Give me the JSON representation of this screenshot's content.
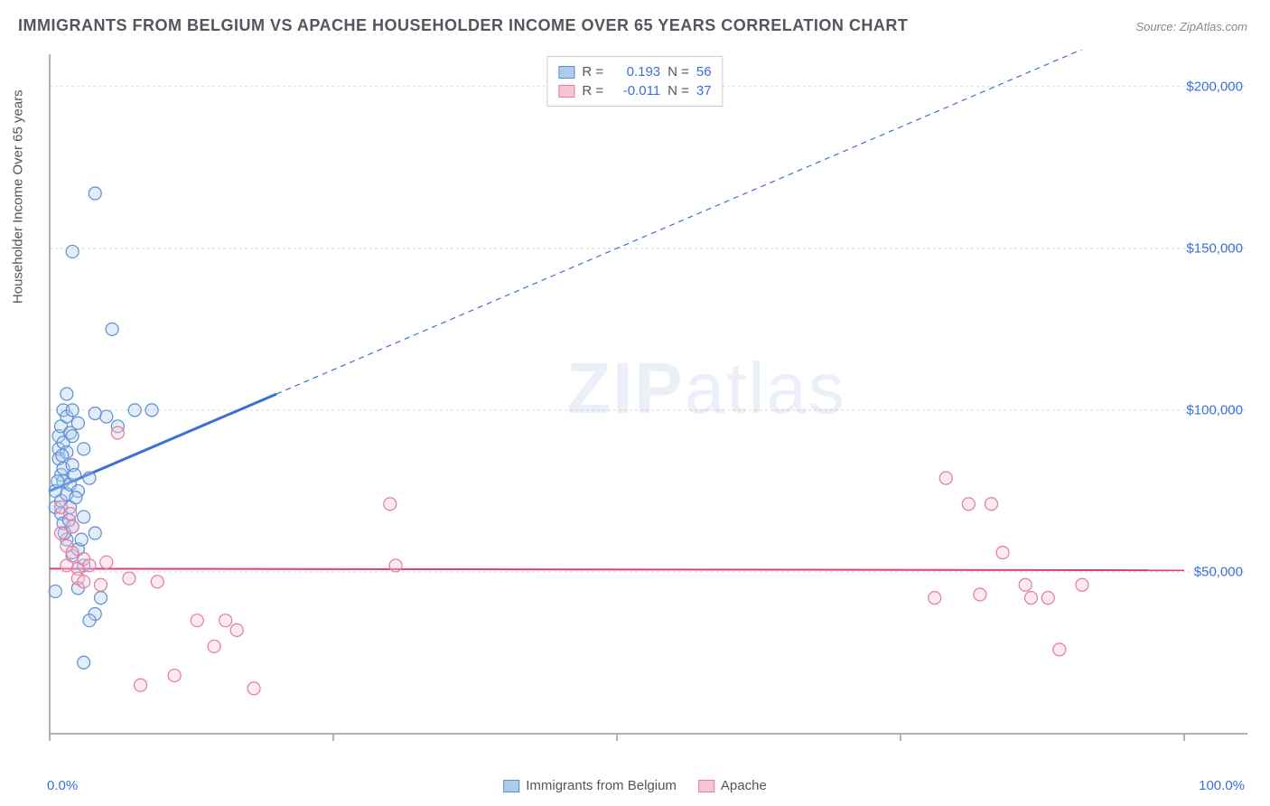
{
  "title": "IMMIGRANTS FROM BELGIUM VS APACHE HOUSEHOLDER INCOME OVER 65 YEARS CORRELATION CHART",
  "source": "Source: ZipAtlas.com",
  "watermark": "ZIPatlas",
  "chart": {
    "type": "scatter",
    "background_color": "#ffffff",
    "grid_color": "#d8d8d8",
    "axis_color": "#999999",
    "y_label": "Householder Income Over 65 years",
    "y_label_fontsize": 15,
    "xlim": [
      0,
      100
    ],
    "ylim": [
      0,
      210000
    ],
    "x_ticks": [
      0,
      25,
      50,
      75,
      100
    ],
    "x_tick_labels_shown": {
      "0": "0.0%",
      "100": "100.0%"
    },
    "y_gridlines": [
      50000,
      100000,
      150000,
      200000
    ],
    "y_tick_labels": {
      "50000": "$50,000",
      "100000": "$100,000",
      "150000": "$150,000",
      "200000": "$200,000"
    },
    "marker_radius": 7,
    "marker_stroke_width": 1.2,
    "marker_fill_opacity": 0.35,
    "series": [
      {
        "name": "Immigrants from Belgium",
        "color_fill": "#aecbec",
        "color_stroke": "#5a8fd6",
        "r_value": "0.193",
        "n_value": "56",
        "trend": {
          "x1": 0,
          "y1": 75000,
          "x2": 20,
          "y2": 105000,
          "x2_dash": 100,
          "y2_dash": 225000,
          "stroke": "#3b6fd6",
          "stroke_width": 2
        },
        "points": [
          [
            0.5,
            75000
          ],
          [
            0.5,
            70000
          ],
          [
            0.8,
            92000
          ],
          [
            0.8,
            88000
          ],
          [
            0.8,
            85000
          ],
          [
            1.0,
            95000
          ],
          [
            1.0,
            80000
          ],
          [
            1.0,
            72000
          ],
          [
            1.0,
            68000
          ],
          [
            1.2,
            100000
          ],
          [
            1.2,
            90000
          ],
          [
            1.2,
            82000
          ],
          [
            1.2,
            78000
          ],
          [
            1.2,
            65000
          ],
          [
            1.5,
            105000
          ],
          [
            1.5,
            98000
          ],
          [
            1.5,
            87000
          ],
          [
            1.5,
            74000
          ],
          [
            1.5,
            60000
          ],
          [
            1.8,
            93000
          ],
          [
            1.8,
            77000
          ],
          [
            1.8,
            70000
          ],
          [
            2.0,
            149000
          ],
          [
            2.0,
            100000
          ],
          [
            2.0,
            92000
          ],
          [
            2.0,
            83000
          ],
          [
            2.0,
            64000
          ],
          [
            2.0,
            55000
          ],
          [
            2.5,
            96000
          ],
          [
            2.5,
            75000
          ],
          [
            2.5,
            57000
          ],
          [
            2.5,
            45000
          ],
          [
            3.0,
            88000
          ],
          [
            3.0,
            67000
          ],
          [
            3.0,
            52000
          ],
          [
            3.5,
            79000
          ],
          [
            4.0,
            167000
          ],
          [
            4.0,
            99000
          ],
          [
            4.0,
            62000
          ],
          [
            4.0,
            37000
          ],
          [
            3.0,
            22000
          ],
          [
            4.5,
            42000
          ],
          [
            5.0,
            98000
          ],
          [
            5.5,
            125000
          ],
          [
            6.0,
            95000
          ],
          [
            7.5,
            100000
          ],
          [
            9.0,
            100000
          ],
          [
            3.5,
            35000
          ],
          [
            1.3,
            62000
          ],
          [
            0.7,
            78000
          ],
          [
            1.1,
            86000
          ],
          [
            1.7,
            66000
          ],
          [
            2.3,
            73000
          ],
          [
            2.8,
            60000
          ],
          [
            0.5,
            44000
          ],
          [
            2.2,
            80000
          ]
        ]
      },
      {
        "name": "Apache",
        "color_fill": "#f6c4d3",
        "color_stroke": "#e47a9e",
        "r_value": "-0.011",
        "n_value": "37",
        "trend": {
          "x1": 0,
          "y1": 51000,
          "x2": 100,
          "y2": 50500,
          "stroke": "#e03c78",
          "stroke_width": 2
        },
        "points": [
          [
            1.0,
            70000
          ],
          [
            1.0,
            62000
          ],
          [
            1.5,
            58000
          ],
          [
            1.5,
            52000
          ],
          [
            1.8,
            68000
          ],
          [
            2.0,
            64000
          ],
          [
            2.0,
            56000
          ],
          [
            2.5,
            51000
          ],
          [
            2.5,
            48000
          ],
          [
            3.0,
            54000
          ],
          [
            3.0,
            47000
          ],
          [
            3.5,
            52000
          ],
          [
            4.5,
            46000
          ],
          [
            5.0,
            53000
          ],
          [
            6.0,
            93000
          ],
          [
            7.0,
            48000
          ],
          [
            8.0,
            15000
          ],
          [
            9.5,
            47000
          ],
          [
            11.0,
            18000
          ],
          [
            13.0,
            35000
          ],
          [
            14.5,
            27000
          ],
          [
            15.5,
            35000
          ],
          [
            16.5,
            32000
          ],
          [
            18.0,
            14000
          ],
          [
            30.0,
            71000
          ],
          [
            30.5,
            52000
          ],
          [
            78.0,
            42000
          ],
          [
            79.0,
            79000
          ],
          [
            81.0,
            71000
          ],
          [
            83.0,
            71000
          ],
          [
            84.0,
            56000
          ],
          [
            86.0,
            46000
          ],
          [
            86.5,
            42000
          ],
          [
            88.0,
            42000
          ],
          [
            89.0,
            26000
          ],
          [
            91.0,
            46000
          ],
          [
            82.0,
            43000
          ]
        ]
      }
    ],
    "bottom_legend": [
      {
        "label": "Immigrants from Belgium",
        "fill": "#aecbec",
        "stroke": "#5a8fd6"
      },
      {
        "label": "Apache",
        "fill": "#f6c4d3",
        "stroke": "#e47a9e"
      }
    ]
  }
}
